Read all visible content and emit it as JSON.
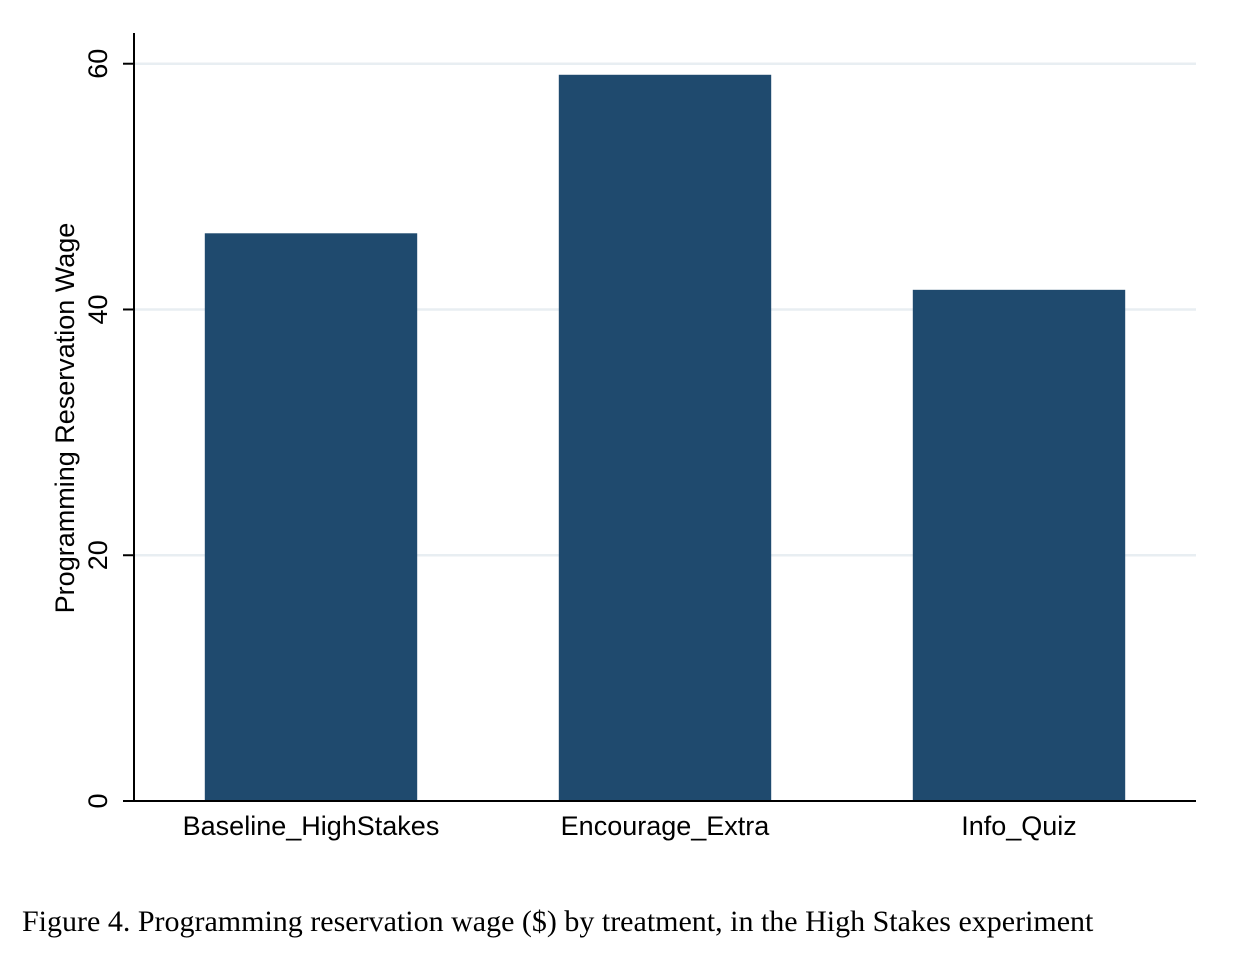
{
  "chart_data": {
    "type": "bar",
    "categories": [
      "Baseline_HighStakes",
      "Encourage_Extra",
      "Info_Quiz"
    ],
    "values": [
      46.2,
      59.1,
      41.6
    ],
    "title": "",
    "xlabel": "",
    "ylabel": "Programming Reservation Wage",
    "ylim": [
      0,
      62.5
    ],
    "yticks": [
      0,
      20,
      40,
      60
    ],
    "grid": true,
    "bar_color": "#1f4a6e",
    "grid_color": "#e8eef2"
  },
  "caption": "Figure 4.  Programming reservation wage ($) by treatment, in the High Stakes experiment"
}
